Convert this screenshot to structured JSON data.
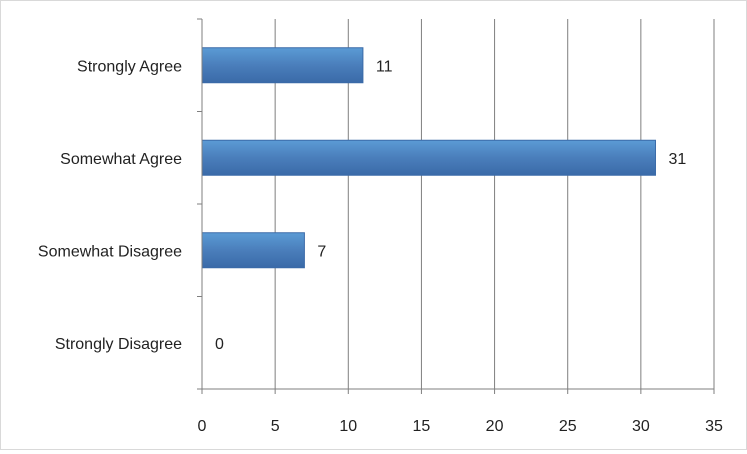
{
  "chart_data": {
    "type": "bar",
    "orientation": "horizontal",
    "categories": [
      "Strongly Agree",
      "Somewhat Agree",
      "Somewhat Disagree",
      "Strongly Disagree"
    ],
    "values": [
      11,
      31,
      7,
      0
    ],
    "xlim": [
      0,
      35
    ],
    "x_ticks": [
      0,
      5,
      10,
      15,
      20,
      25,
      30,
      35
    ],
    "title": "",
    "xlabel": "",
    "ylabel": "",
    "grid": "vertical",
    "legend": "none",
    "data_labels": true,
    "colors": {
      "bar": "#4a7ebb",
      "bar_highlight": "#5b9bd5",
      "bar_border": "#3a6aa8",
      "gridline": "#7f7f7f",
      "axis": "#7f7f7f"
    }
  }
}
